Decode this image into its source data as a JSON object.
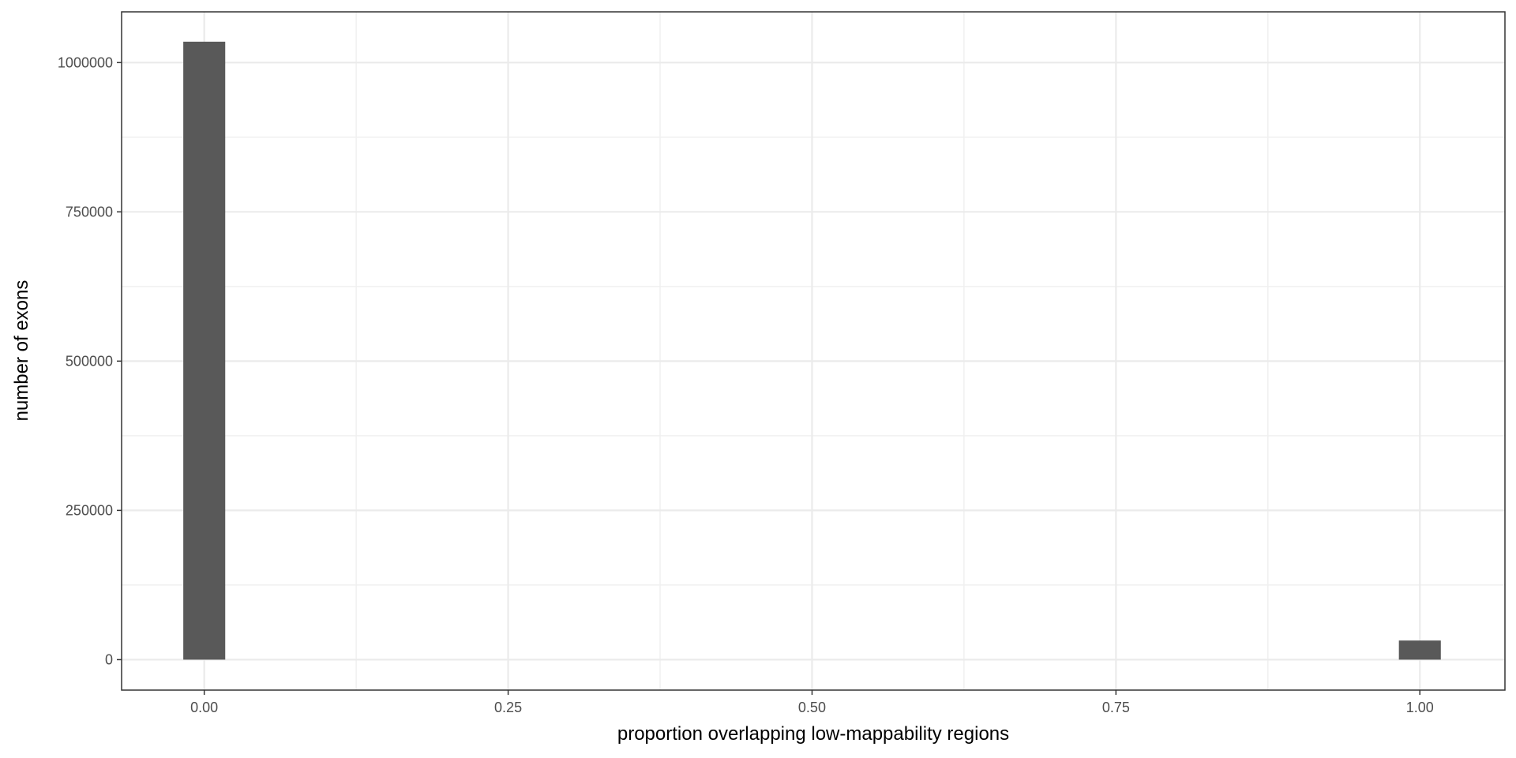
{
  "chart_data": {
    "type": "bar",
    "title": "",
    "xlabel": "proportion overlapping low-mappability regions",
    "ylabel": "number of exons",
    "x_ticks": [
      "0.00",
      "0.25",
      "0.50",
      "0.75",
      "1.00"
    ],
    "x_tick_values": [
      0,
      0.25,
      0.5,
      0.75,
      1
    ],
    "y_ticks": [
      "0",
      "250000",
      "500000",
      "750000",
      "1000000"
    ],
    "y_tick_values": [
      0,
      250000,
      500000,
      750000,
      1000000
    ],
    "xlim": [
      -0.068,
      1.07
    ],
    "ylim": [
      -51000,
      1085000
    ],
    "bin_width": 0.0345,
    "bins": [
      {
        "x": 0.0,
        "count": 1035000
      },
      {
        "x": 1.0,
        "count": 32000
      }
    ],
    "bar_color": "#595959",
    "grid": true
  }
}
